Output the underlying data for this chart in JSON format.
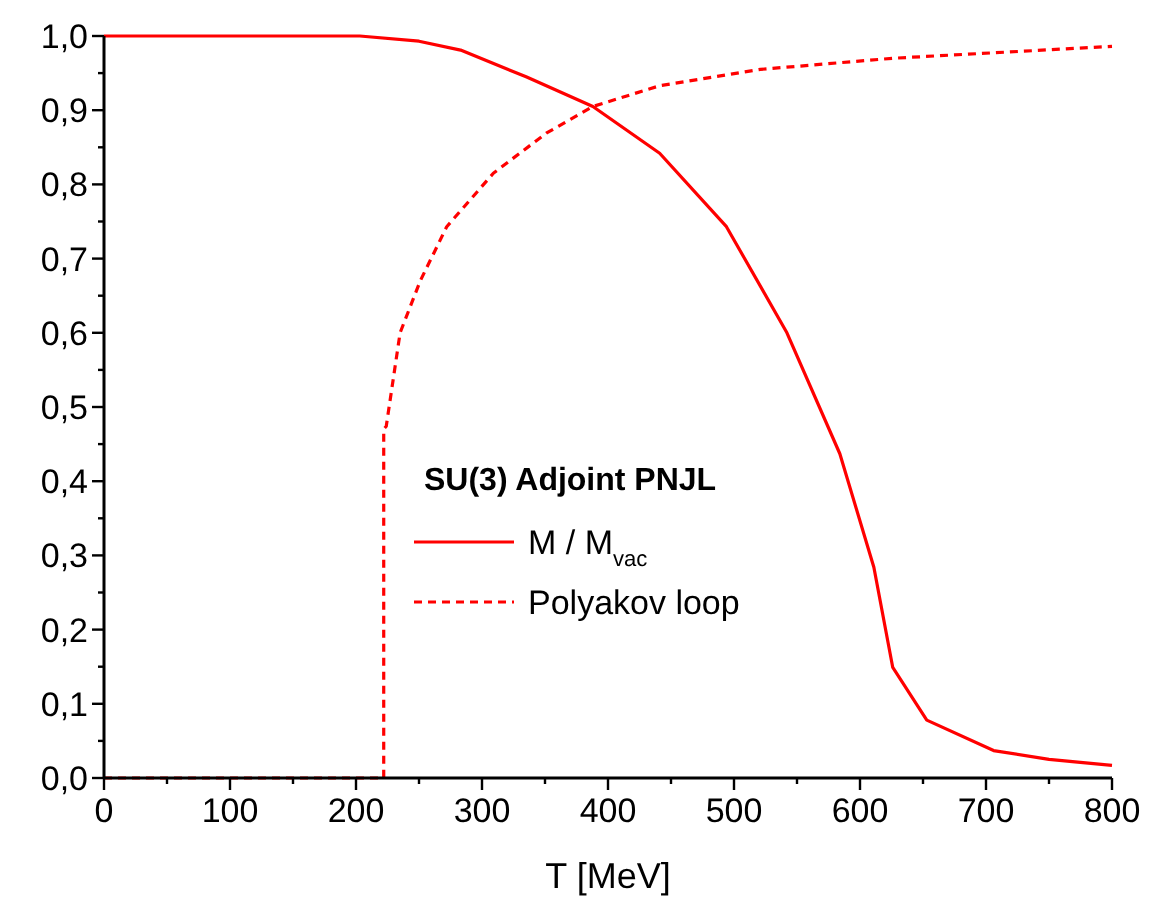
{
  "chart_data": {
    "type": "line",
    "xlabel": "T [MeV]",
    "legend_title": "SU(3) Adjoint PNJL",
    "legend": "center",
    "grid": false,
    "marker": "none",
    "xlim": [
      0,
      800
    ],
    "xticks": [
      0,
      {
        "value": 50,
        "label": null
      },
      100,
      {
        "value": 150,
        "label": null
      },
      200,
      {
        "value": 250,
        "label": null
      },
      300,
      {
        "value": 350,
        "label": null
      },
      400,
      {
        "value": 450,
        "label": null
      },
      500,
      {
        "value": 550,
        "label": null
      },
      600,
      {
        "value": 650,
        "label": null
      },
      700,
      {
        "value": 750,
        "label": null
      },
      800
    ],
    "ylim": [
      0,
      1
    ],
    "yticks": [
      {
        "value": 0,
        "label": "0,0"
      },
      {
        "value": 0.05,
        "label": null
      },
      {
        "value": 0.1,
        "label": "0,1"
      },
      {
        "value": 0.15,
        "label": null
      },
      {
        "value": 0.2,
        "label": "0,2"
      },
      {
        "value": 0.25,
        "label": null
      },
      {
        "value": 0.3,
        "label": "0,3"
      },
      {
        "value": 0.35,
        "label": null
      },
      {
        "value": 0.4,
        "label": "0,4"
      },
      {
        "value": 0.45,
        "label": null
      },
      {
        "value": 0.5,
        "label": "0,5"
      },
      {
        "value": 0.55,
        "label": null
      },
      {
        "value": 0.6,
        "label": "0,6"
      },
      {
        "value": 0.65,
        "label": null
      },
      {
        "value": 0.7,
        "label": "0,7"
      },
      {
        "value": 0.75,
        "label": null
      },
      {
        "value": 0.8,
        "label": "0,8"
      },
      {
        "value": 0.85,
        "label": null
      },
      {
        "value": 0.9,
        "label": "0,9"
      },
      {
        "value": 0.95,
        "label": null
      },
      {
        "value": 1,
        "label": "1,0"
      }
    ],
    "series": [
      {
        "name": "M / M$_{vac}$",
        "color": "#ff0000",
        "line_style": "solid",
        "x": [
          0,
          100,
          203,
          250,
          283,
          335,
          388,
          441,
          494,
          542,
          584,
          611,
          626,
          653,
          706,
          750,
          800
        ],
        "values": [
          1.0,
          1.0,
          1.0,
          0.993,
          0.981,
          0.945,
          0.905,
          0.842,
          0.743,
          0.6,
          0.437,
          0.284,
          0.149,
          0.078,
          0.037,
          0.025,
          0.017
        ]
      },
      {
        "name": "Polyakov loop",
        "color": "#ff0000",
        "line_style": "dashed",
        "x": [
          0,
          100,
          222,
          222,
          224,
          235,
          251,
          272,
          309,
          351,
          388,
          441,
          521,
          626,
          800
        ],
        "values": [
          0,
          0,
          0,
          0.47,
          0.474,
          0.6,
          0.67,
          0.743,
          0.815,
          0.869,
          0.905,
          0.933,
          0.955,
          0.97,
          0.986
        ]
      }
    ]
  }
}
